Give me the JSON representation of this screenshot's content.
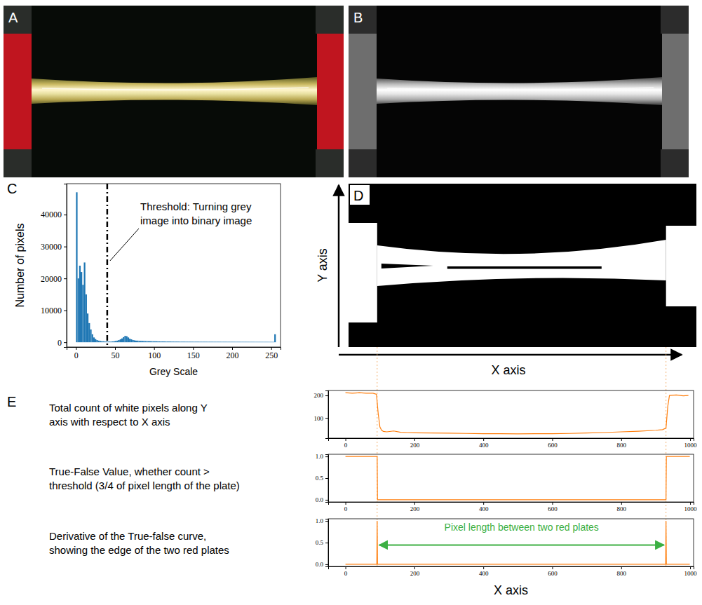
{
  "panel_labels": [
    "A",
    "B",
    "C",
    "D",
    "E"
  ],
  "binary_image": {
    "y_axis_label": "Y axis",
    "x_axis_label": "X axis"
  },
  "chart_data": [
    {
      "type": "histogram",
      "x_label": "Grey Scale",
      "y_label": "Number of pixels",
      "color": "#1f77b4",
      "bins": [
        0,
        2,
        4,
        6,
        8,
        10,
        12,
        14,
        16,
        18,
        20,
        22,
        24,
        26,
        28,
        30,
        32,
        34,
        36,
        38,
        40,
        42,
        44,
        46,
        48,
        50,
        52,
        54,
        56,
        58,
        60,
        62,
        64,
        66,
        68,
        70,
        72,
        74,
        76,
        78,
        80,
        82,
        84,
        86,
        88,
        90,
        92,
        94,
        96,
        98,
        100,
        102,
        104,
        106,
        108,
        110,
        112,
        114,
        116,
        118,
        120,
        122,
        124,
        126,
        128,
        130,
        132,
        134,
        136,
        138,
        140,
        142,
        144,
        146,
        148,
        150,
        152,
        154,
        156,
        158,
        160,
        162,
        164,
        166,
        168,
        170,
        172,
        174,
        176,
        178,
        180,
        182,
        184,
        186,
        188,
        190,
        192,
        194,
        196,
        198,
        200,
        202,
        204,
        206,
        208,
        210,
        212,
        214,
        216,
        218,
        220,
        222,
        224,
        226,
        228,
        230,
        232,
        234,
        236,
        238,
        240,
        242,
        244,
        246,
        248,
        250,
        252,
        254,
        256
      ],
      "values": [
        47000,
        20000,
        24000,
        22000,
        18000,
        25000,
        15000,
        9000,
        6000,
        4000,
        2500,
        1500,
        1000,
        700,
        500,
        400,
        300,
        300,
        250,
        250,
        200,
        200,
        200,
        250,
        300,
        400,
        500,
        700,
        900,
        1200,
        1600,
        2000,
        1900,
        1500,
        1100,
        900,
        700,
        600,
        500,
        500,
        450,
        420,
        400,
        380,
        360,
        340,
        330,
        320,
        310,
        300,
        290,
        280,
        270,
        260,
        250,
        240,
        235,
        230,
        225,
        220,
        215,
        210,
        205,
        200,
        195,
        190,
        185,
        180,
        178,
        176,
        174,
        172,
        170,
        168,
        166,
        165,
        164,
        163,
        162,
        161,
        160,
        159,
        158,
        157,
        156,
        155,
        154,
        153,
        152,
        151,
        150,
        149,
        148,
        147,
        146,
        145,
        144,
        143,
        142,
        141,
        140,
        139,
        138,
        137,
        136,
        135,
        134,
        133,
        132,
        131,
        130,
        129,
        128,
        127,
        126,
        125,
        124,
        123,
        122,
        121,
        120,
        119,
        118,
        117,
        116,
        115,
        114,
        2500
      ],
      "xlim": [
        -12,
        262
      ],
      "ylim": [
        -1500,
        49700
      ],
      "xticks": [
        0,
        50,
        100,
        150,
        200,
        250
      ],
      "yticks": [
        0,
        10000,
        20000,
        30000,
        40000
      ],
      "annotation": {
        "lines": [
          "Threshold: Turning grey",
          "image into binary image"
        ],
        "x": 40
      }
    },
    {
      "type": "line",
      "description": [
        "Total count of white pixels along Y",
        "axis with respect to X axis"
      ],
      "color": "#ff7f0e",
      "x": [
        0,
        20,
        40,
        60,
        80,
        90,
        95,
        100,
        105,
        110,
        120,
        140,
        160,
        180,
        200,
        250,
        300,
        350,
        400,
        450,
        500,
        550,
        600,
        650,
        700,
        750,
        800,
        850,
        900,
        920,
        930,
        935,
        940,
        960,
        980,
        995
      ],
      "values": [
        212,
        210,
        212,
        210,
        210,
        205,
        120,
        60,
        45,
        40,
        38,
        42,
        36,
        35,
        34,
        33,
        32,
        31,
        30,
        30,
        29,
        30,
        30,
        31,
        33,
        35,
        38,
        41,
        45,
        48,
        55,
        150,
        200,
        202,
        198,
        200
      ],
      "xlim": [
        -50,
        1010
      ],
      "ylim": [
        10,
        222
      ],
      "xticks": [
        0,
        200,
        400,
        600,
        800,
        1000
      ],
      "yticks": [
        100,
        200
      ]
    },
    {
      "type": "line",
      "description": [
        "True-False Value, whether count >",
        "threshold (3/4 of pixel length of the plate)"
      ],
      "color": "#ff7f0e",
      "x": [
        0,
        92,
        93,
        930,
        931,
        999
      ],
      "values": [
        1,
        1,
        0,
        0,
        1,
        1
      ],
      "xlim": [
        -50,
        1010
      ],
      "ylim": [
        -0.05,
        1.05
      ],
      "xticks": [
        0,
        200,
        400,
        600,
        800,
        1000
      ],
      "yticks": [
        {
          "value": 0,
          "label": "0.0"
        },
        0.5,
        {
          "value": 1,
          "label": "1.0"
        }
      ]
    },
    {
      "type": "line",
      "description": [
        "Derivative of the True-false curve,",
        "showing the edge of the two red plates"
      ],
      "x_label": "X axis",
      "color": "#ff7f0e",
      "x": [
        0,
        91,
        92,
        93,
        929,
        930,
        931,
        999
      ],
      "values": [
        0,
        0,
        1,
        0,
        0,
        1,
        0,
        0
      ],
      "xlim": [
        -50,
        1010
      ],
      "ylim": [
        -0.05,
        1.05
      ],
      "xticks": [
        0,
        200,
        400,
        600,
        800,
        1000
      ],
      "yticks": [
        {
          "value": 0,
          "label": "0.0"
        },
        0.5,
        {
          "value": 1,
          "label": "1.0"
        }
      ],
      "annotation": {
        "text": "Pixel length between two red plates",
        "x": [
          92,
          930
        ],
        "color": "#3cb043"
      }
    }
  ]
}
